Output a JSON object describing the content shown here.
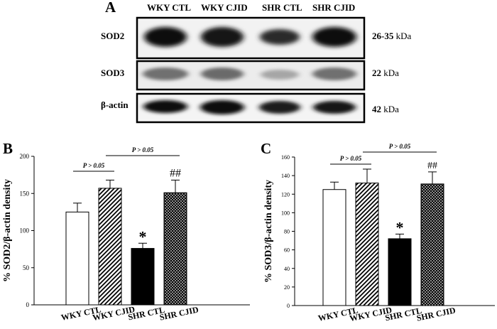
{
  "panel_a": {
    "letter": "A",
    "lanes": [
      "WKY CTL",
      "WKY CJID",
      "SHR CTL",
      "SHR CJID"
    ],
    "blots": [
      {
        "label": "SOD2",
        "size": "26-35",
        "unit": "kDa"
      },
      {
        "label": "SOD3",
        "size": "22",
        "unit": "kDa"
      },
      {
        "label": "β-actin",
        "size": "42",
        "unit": "kDa"
      }
    ]
  },
  "chart_data": [
    {
      "letter": "B",
      "type": "bar",
      "ylabel": "% SOD2/β-actin density",
      "categories": [
        "WKY CTL",
        "WKY CJID",
        "SHR CTL",
        "SHR CJID"
      ],
      "values": [
        125,
        157,
        76,
        151
      ],
      "errors": [
        12,
        11,
        7,
        17
      ],
      "ylim": [
        0,
        200
      ],
      "yticks": [
        0,
        50,
        100,
        150,
        200
      ],
      "patterns": [
        "white",
        "diagonal",
        "solid-black",
        "dots"
      ],
      "bar_marks": [
        "",
        "",
        "*",
        "##"
      ],
      "brackets": [
        {
          "from": 0,
          "to": 1,
          "label": "P > 0.05"
        },
        {
          "from": 1,
          "to": 3,
          "label": "P > 0.05"
        }
      ]
    },
    {
      "letter": "C",
      "type": "bar",
      "ylabel": "% SOD3/β-actin density",
      "categories": [
        "WKY CTL",
        "WKY CJID",
        "SHR CTL",
        "SHR CJID"
      ],
      "values": [
        125,
        132,
        72,
        131
      ],
      "errors": [
        8,
        15,
        5,
        13
      ],
      "ylim": [
        0,
        160
      ],
      "yticks": [
        0,
        20,
        40,
        60,
        80,
        100,
        120,
        140,
        160
      ],
      "patterns": [
        "white",
        "diagonal",
        "solid-black",
        "dots"
      ],
      "bar_marks": [
        "",
        "",
        "*",
        "##"
      ],
      "brackets": [
        {
          "from": 0,
          "to": 1,
          "label": "P > 0.05"
        },
        {
          "from": 1,
          "to": 3,
          "label": "P > 0.05"
        }
      ]
    }
  ]
}
